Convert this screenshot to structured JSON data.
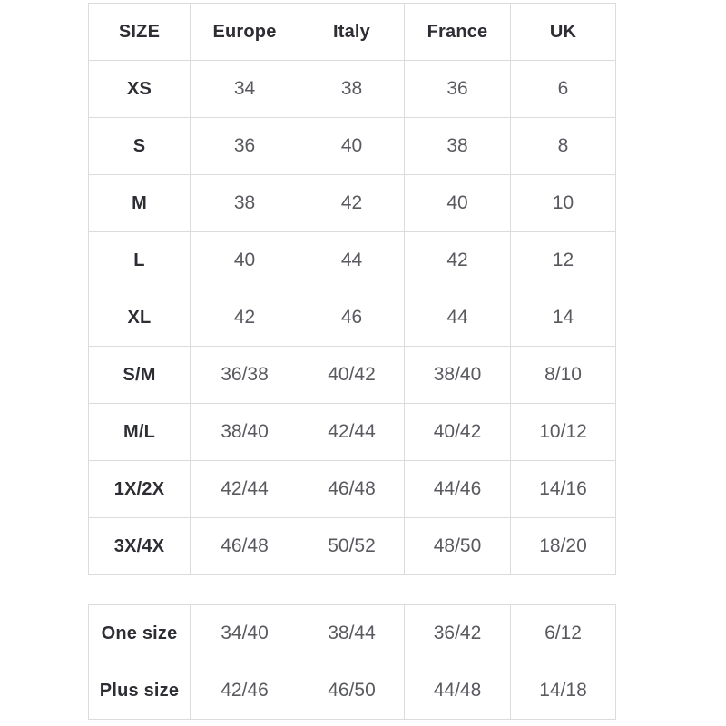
{
  "page": {
    "background": "#ffffff"
  },
  "colors": {
    "label_text": "#2d2e34",
    "value_text": "#595a60",
    "border": "#dcdcdc"
  },
  "main_table": {
    "columns": [
      "SIZE",
      "Europe",
      "Italy",
      "France",
      "UK"
    ],
    "rows": [
      {
        "label": "XS",
        "values": [
          "34",
          "38",
          "36",
          "6"
        ]
      },
      {
        "label": "S",
        "values": [
          "36",
          "40",
          "38",
          "8"
        ]
      },
      {
        "label": "M",
        "values": [
          "38",
          "42",
          "40",
          "10"
        ]
      },
      {
        "label": "L",
        "values": [
          "40",
          "44",
          "42",
          "12"
        ]
      },
      {
        "label": "XL",
        "values": [
          "42",
          "46",
          "44",
          "14"
        ]
      },
      {
        "label": "S/M",
        "values": [
          "36/38",
          "40/42",
          "38/40",
          "8/10"
        ]
      },
      {
        "label": "M/L",
        "values": [
          "38/40",
          "42/44",
          "40/42",
          "10/12"
        ]
      },
      {
        "label": "1X/2X",
        "values": [
          "42/44",
          "46/48",
          "44/46",
          "14/16"
        ]
      },
      {
        "label": "3X/4X",
        "values": [
          "46/48",
          "50/52",
          "48/50",
          "18/20"
        ]
      }
    ]
  },
  "extra_table": {
    "rows": [
      {
        "label": "One size",
        "values": [
          "34/40",
          "38/44",
          "36/42",
          "6/12"
        ]
      },
      {
        "label": "Plus size",
        "values": [
          "42/46",
          "46/50",
          "44/48",
          "14/18"
        ]
      }
    ]
  }
}
